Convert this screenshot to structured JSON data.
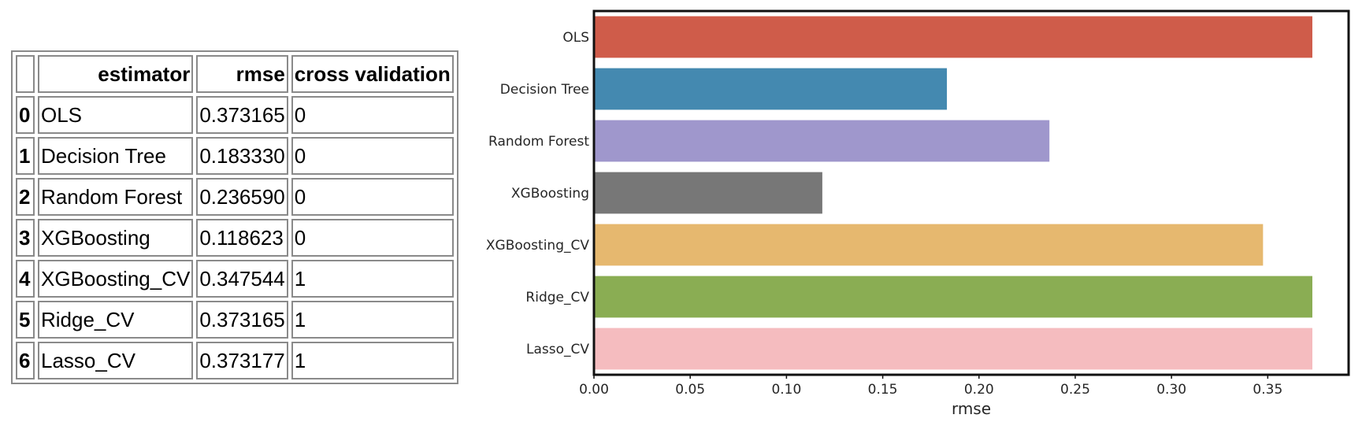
{
  "table": {
    "columns": [
      "",
      "estimator",
      "rmse",
      "cross validation"
    ],
    "rows": [
      {
        "index": "0",
        "estimator": "OLS",
        "rmse": "0.373165",
        "cv": "0"
      },
      {
        "index": "1",
        "estimator": "Decision Tree",
        "rmse": "0.183330",
        "cv": "0"
      },
      {
        "index": "2",
        "estimator": "Random Forest",
        "rmse": "0.236590",
        "cv": "0"
      },
      {
        "index": "3",
        "estimator": "XGBoosting",
        "rmse": "0.118623",
        "cv": "0"
      },
      {
        "index": "4",
        "estimator": "XGBoosting_CV",
        "rmse": "0.347544",
        "cv": "1"
      },
      {
        "index": "5",
        "estimator": "Ridge_CV",
        "rmse": "0.373165",
        "cv": "1"
      },
      {
        "index": "6",
        "estimator": "Lasso_CV",
        "rmse": "0.373177",
        "cv": "1"
      }
    ]
  },
  "chart_data": {
    "type": "bar",
    "orientation": "horizontal",
    "categories": [
      "OLS",
      "Decision Tree",
      "Random Forest",
      "XGBoosting",
      "XGBoosting_CV",
      "Ridge_CV",
      "Lasso_CV"
    ],
    "values": [
      0.373165,
      0.18333,
      0.23659,
      0.118623,
      0.347544,
      0.373165,
      0.373177
    ],
    "colors": [
      "#cf5c4a",
      "#4489b0",
      "#9f97cc",
      "#777777",
      "#e6b86f",
      "#8aad53",
      "#f5bcbf"
    ],
    "xlabel": "rmse",
    "ylabel": "",
    "xlim": [
      0,
      0.392
    ],
    "xticks": [
      0.0,
      0.05,
      0.1,
      0.15,
      0.2,
      0.25,
      0.3,
      0.35
    ],
    "xtick_labels": [
      "0.00",
      "0.05",
      "0.10",
      "0.15",
      "0.20",
      "0.25",
      "0.30",
      "0.35"
    ],
    "grid": false,
    "legend": "none"
  }
}
